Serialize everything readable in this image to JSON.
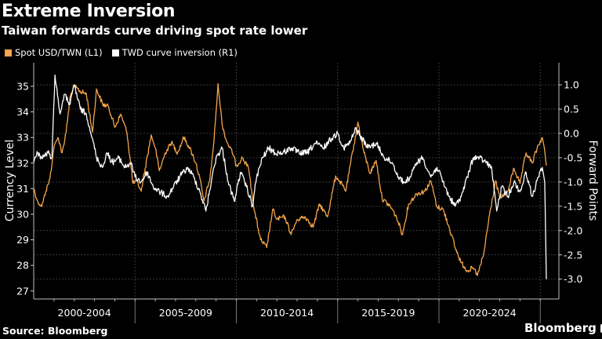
{
  "header": {
    "title": "Extreme Inversion",
    "subtitle": "Taiwan forwards curve driving spot rate lower"
  },
  "legend": [
    {
      "label": "Spot USD/TWN (L1)",
      "color": "#f5a54a"
    },
    {
      "label": "TWD curve inversion  (R1)",
      "color": "#ffffff"
    }
  ],
  "footer": {
    "source": "Source: Bloomberg",
    "brand": "Bloomberg"
  },
  "chart_data": {
    "type": "line",
    "title": "Extreme Inversion",
    "subtitle": "Taiwan forwards curve driving spot rate lower",
    "xlabel": "",
    "x_categories": [
      "2000-2004",
      "2005-2009",
      "2010-2014",
      "2015-2019",
      "2020-2024"
    ],
    "xlim": [
      2000,
      2025.3
    ],
    "left_axis": {
      "label": "Currency Level",
      "ylim": [
        26.7,
        36.0
      ],
      "ticks": [
        27,
        28,
        29,
        30,
        31,
        32,
        33,
        34,
        35
      ]
    },
    "right_axis": {
      "label": "Forward Points",
      "ylim": [
        -3.3,
        1.5
      ],
      "ticks": [
        "1.0",
        "0.5",
        "0.0",
        "-0.5",
        "-1.0",
        "-1.5",
        "-2.0",
        "-2.5",
        "-3.0"
      ]
    },
    "grid": true,
    "legend_position": "top-left",
    "series": [
      {
        "name": "Spot USD/TWN (L1)",
        "axis": "left",
        "color": "#f5a54a",
        "points": [
          [
            2000.0,
            31.0
          ],
          [
            2000.2,
            30.5
          ],
          [
            2000.4,
            30.3
          ],
          [
            2000.6,
            30.9
          ],
          [
            2000.8,
            31.4
          ],
          [
            2001.0,
            32.6
          ],
          [
            2001.2,
            33.0
          ],
          [
            2001.4,
            32.4
          ],
          [
            2001.6,
            33.2
          ],
          [
            2001.8,
            34.6
          ],
          [
            2002.0,
            35.0
          ],
          [
            2002.3,
            34.8
          ],
          [
            2002.6,
            34.7
          ],
          [
            2002.9,
            33.2
          ],
          [
            2003.1,
            34.9
          ],
          [
            2003.4,
            34.3
          ],
          [
            2003.7,
            34.2
          ],
          [
            2004.0,
            33.4
          ],
          [
            2004.3,
            33.9
          ],
          [
            2004.6,
            33.2
          ],
          [
            2004.9,
            31.2
          ],
          [
            2005.1,
            31.3
          ],
          [
            2005.3,
            30.9
          ],
          [
            2005.5,
            31.8
          ],
          [
            2005.8,
            33.1
          ],
          [
            2006.0,
            32.6
          ],
          [
            2006.2,
            31.7
          ],
          [
            2006.5,
            32.4
          ],
          [
            2006.8,
            32.8
          ],
          [
            2007.1,
            32.4
          ],
          [
            2007.4,
            33.0
          ],
          [
            2007.7,
            32.6
          ],
          [
            2008.0,
            32.0
          ],
          [
            2008.2,
            31.4
          ],
          [
            2008.4,
            30.5
          ],
          [
            2008.7,
            31.4
          ],
          [
            2008.9,
            32.9
          ],
          [
            2009.1,
            35.1
          ],
          [
            2009.3,
            33.5
          ],
          [
            2009.5,
            32.9
          ],
          [
            2009.8,
            32.4
          ],
          [
            2010.0,
            31.9
          ],
          [
            2010.3,
            32.2
          ],
          [
            2010.6,
            31.8
          ],
          [
            2010.9,
            30.1
          ],
          [
            2011.2,
            29.0
          ],
          [
            2011.5,
            28.7
          ],
          [
            2011.8,
            30.2
          ],
          [
            2012.0,
            29.8
          ],
          [
            2012.4,
            29.9
          ],
          [
            2012.7,
            29.2
          ],
          [
            2013.0,
            29.8
          ],
          [
            2013.4,
            29.9
          ],
          [
            2013.8,
            29.5
          ],
          [
            2014.1,
            30.4
          ],
          [
            2014.5,
            29.9
          ],
          [
            2014.9,
            31.5
          ],
          [
            2015.1,
            31.3
          ],
          [
            2015.4,
            30.9
          ],
          [
            2015.8,
            32.7
          ],
          [
            2016.0,
            33.6
          ],
          [
            2016.3,
            32.4
          ],
          [
            2016.6,
            31.6
          ],
          [
            2016.9,
            32.1
          ],
          [
            2017.2,
            30.6
          ],
          [
            2017.6,
            30.3
          ],
          [
            2017.9,
            29.9
          ],
          [
            2018.2,
            29.2
          ],
          [
            2018.5,
            30.4
          ],
          [
            2018.9,
            30.8
          ],
          [
            2019.3,
            30.9
          ],
          [
            2019.6,
            31.3
          ],
          [
            2019.9,
            30.3
          ],
          [
            2020.2,
            30.2
          ],
          [
            2020.5,
            29.5
          ],
          [
            2020.8,
            28.7
          ],
          [
            2021.1,
            28.1
          ],
          [
            2021.4,
            27.8
          ],
          [
            2021.7,
            27.9
          ],
          [
            2021.9,
            27.6
          ],
          [
            2022.2,
            28.4
          ],
          [
            2022.5,
            30.0
          ],
          [
            2022.8,
            31.3
          ],
          [
            2023.0,
            30.6
          ],
          [
            2023.4,
            30.9
          ],
          [
            2023.7,
            31.8
          ],
          [
            2024.0,
            31.2
          ],
          [
            2024.3,
            32.4
          ],
          [
            2024.6,
            32.0
          ],
          [
            2024.9,
            32.7
          ],
          [
            2025.1,
            33.0
          ],
          [
            2025.2,
            32.6
          ],
          [
            2025.3,
            31.9
          ]
        ]
      },
      {
        "name": "TWD curve inversion (R1)",
        "axis": "right",
        "color": "#ffffff",
        "points": [
          [
            2000.0,
            -0.6
          ],
          [
            2000.2,
            -0.4
          ],
          [
            2000.4,
            -0.5
          ],
          [
            2000.7,
            -0.4
          ],
          [
            2000.9,
            -0.5
          ],
          [
            2001.05,
            1.2
          ],
          [
            2001.3,
            0.4
          ],
          [
            2001.5,
            0.8
          ],
          [
            2001.8,
            0.6
          ],
          [
            2002.0,
            1.0
          ],
          [
            2002.3,
            0.5
          ],
          [
            2002.6,
            0.4
          ],
          [
            2002.9,
            -0.1
          ],
          [
            2003.1,
            -0.5
          ],
          [
            2003.4,
            -0.7
          ],
          [
            2003.6,
            -0.4
          ],
          [
            2003.9,
            -0.6
          ],
          [
            2004.2,
            -0.5
          ],
          [
            2004.5,
            -0.7
          ],
          [
            2004.8,
            -0.6
          ],
          [
            2005.0,
            -0.9
          ],
          [
            2005.3,
            -1.0
          ],
          [
            2005.6,
            -0.8
          ],
          [
            2005.9,
            -1.1
          ],
          [
            2006.2,
            -1.2
          ],
          [
            2006.6,
            -1.3
          ],
          [
            2006.9,
            -1.1
          ],
          [
            2007.2,
            -0.9
          ],
          [
            2007.6,
            -0.7
          ],
          [
            2007.9,
            -0.9
          ],
          [
            2008.2,
            -1.2
          ],
          [
            2008.5,
            -1.6
          ],
          [
            2008.8,
            -0.9
          ],
          [
            2009.0,
            -0.5
          ],
          [
            2009.3,
            -0.3
          ],
          [
            2009.6,
            -1.0
          ],
          [
            2009.9,
            -1.4
          ],
          [
            2010.2,
            -0.8
          ],
          [
            2010.5,
            -1.1
          ],
          [
            2010.8,
            -1.5
          ],
          [
            2011.0,
            -0.9
          ],
          [
            2011.3,
            -0.5
          ],
          [
            2011.6,
            -0.3
          ],
          [
            2011.9,
            -0.4
          ],
          [
            2012.3,
            -0.4
          ],
          [
            2012.7,
            -0.3
          ],
          [
            2013.1,
            -0.4
          ],
          [
            2013.5,
            -0.4
          ],
          [
            2013.9,
            -0.2
          ],
          [
            2014.3,
            -0.3
          ],
          [
            2014.7,
            -0.1
          ],
          [
            2015.0,
            0.0
          ],
          [
            2015.3,
            -0.3
          ],
          [
            2015.6,
            -0.2
          ],
          [
            2015.9,
            0.1
          ],
          [
            2016.2,
            -0.1
          ],
          [
            2016.5,
            -0.3
          ],
          [
            2016.9,
            -0.2
          ],
          [
            2017.3,
            -0.5
          ],
          [
            2017.7,
            -0.6
          ],
          [
            2018.0,
            -0.9
          ],
          [
            2018.3,
            -1.0
          ],
          [
            2018.6,
            -0.9
          ],
          [
            2018.9,
            -0.6
          ],
          [
            2019.2,
            -0.5
          ],
          [
            2019.6,
            -0.9
          ],
          [
            2019.9,
            -0.7
          ],
          [
            2020.2,
            -1.0
          ],
          [
            2020.5,
            -1.3
          ],
          [
            2020.8,
            -1.5
          ],
          [
            2021.1,
            -1.3
          ],
          [
            2021.4,
            -0.9
          ],
          [
            2021.7,
            -0.5
          ],
          [
            2022.0,
            -0.5
          ],
          [
            2022.3,
            -0.6
          ],
          [
            2022.6,
            -0.7
          ],
          [
            2022.85,
            -1.6
          ],
          [
            2023.1,
            -1.1
          ],
          [
            2023.4,
            -1.3
          ],
          [
            2023.7,
            -1.0
          ],
          [
            2024.0,
            -1.2
          ],
          [
            2024.3,
            -0.8
          ],
          [
            2024.6,
            -1.3
          ],
          [
            2024.9,
            -0.9
          ],
          [
            2025.1,
            -0.7
          ],
          [
            2025.22,
            -1.0
          ],
          [
            2025.26,
            -2.0
          ],
          [
            2025.3,
            -3.0
          ]
        ]
      }
    ]
  }
}
